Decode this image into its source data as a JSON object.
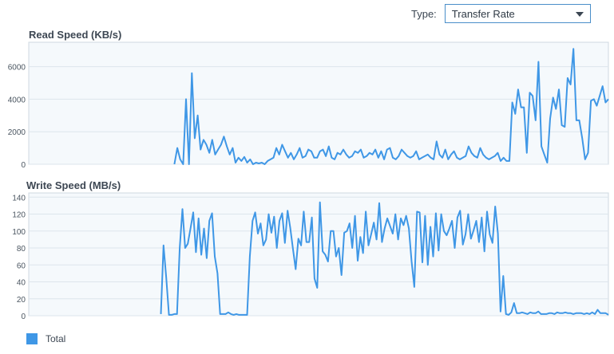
{
  "type_selector": {
    "label": "Type:",
    "value": "Transfer Rate"
  },
  "legend": {
    "label": "Total",
    "color": "#3f97e6"
  },
  "chart_data": [
    {
      "type": "line",
      "title": "Read Speed (KB/s)",
      "ylim": [
        0,
        7500
      ],
      "yticks": [
        0,
        2000,
        4000,
        6000
      ],
      "grid": true,
      "series": [
        {
          "name": "Total",
          "color": "#3f97e6",
          "values": [
            null,
            null,
            null,
            null,
            null,
            null,
            null,
            null,
            null,
            null,
            null,
            null,
            null,
            null,
            null,
            null,
            null,
            null,
            null,
            null,
            null,
            null,
            null,
            null,
            null,
            null,
            null,
            null,
            null,
            null,
            null,
            null,
            null,
            null,
            null,
            null,
            null,
            null,
            null,
            null,
            null,
            null,
            null,
            null,
            null,
            null,
            null,
            null,
            null,
            null,
            0,
            1000,
            300,
            0,
            4000,
            0,
            5600,
            1600,
            3000,
            900,
            1500,
            1200,
            700,
            1500,
            600,
            900,
            1200,
            1700,
            1100,
            600,
            1000,
            100,
            400,
            200,
            450,
            100,
            300,
            0,
            100,
            50,
            100,
            0,
            200,
            300,
            400,
            1000,
            600,
            1200,
            800,
            400,
            700,
            300,
            600,
            1000,
            400,
            500,
            900,
            800,
            400,
            400,
            800,
            900,
            500,
            1100,
            400,
            300,
            700,
            600,
            900,
            600,
            400,
            500,
            800,
            700,
            900,
            400,
            500,
            700,
            600,
            900,
            400,
            800,
            300,
            900,
            1000,
            400,
            300,
            500,
            900,
            700,
            500,
            400,
            500,
            800,
            300,
            400,
            500,
            600,
            400,
            300,
            1400,
            600,
            400,
            900,
            300,
            600,
            800,
            400,
            300,
            400,
            500,
            1100,
            700,
            500,
            400,
            1000,
            600,
            400,
            300,
            400,
            500,
            700,
            200,
            400,
            200,
            200,
            3800,
            3100,
            4600,
            3500,
            3500,
            700,
            4400,
            4200,
            2700,
            6300,
            1100,
            600,
            100,
            2800,
            4100,
            3400,
            4600,
            2400,
            2300,
            5300,
            4900,
            7100,
            2700,
            2700,
            1600,
            300,
            700,
            3900,
            4000,
            3600,
            4200,
            4800,
            3800,
            4000
          ]
        }
      ]
    },
    {
      "type": "line",
      "title": "Write Speed (MB/s)",
      "ylim": [
        0,
        145
      ],
      "yticks": [
        0,
        20,
        40,
        60,
        80,
        100,
        120,
        140
      ],
      "grid": true,
      "series": [
        {
          "name": "Total",
          "color": "#3f97e6",
          "values": [
            null,
            null,
            null,
            null,
            null,
            null,
            null,
            null,
            null,
            null,
            null,
            null,
            null,
            null,
            null,
            null,
            null,
            null,
            null,
            null,
            null,
            null,
            null,
            null,
            null,
            null,
            null,
            null,
            null,
            null,
            null,
            null,
            null,
            null,
            null,
            null,
            null,
            null,
            null,
            null,
            null,
            null,
            null,
            null,
            null,
            null,
            null,
            null,
            null,
            2,
            83,
            45,
            1,
            1,
            2,
            2,
            80,
            126,
            80,
            85,
            103,
            122,
            75,
            115,
            72,
            103,
            68,
            112,
            121,
            70,
            50,
            2,
            2,
            2,
            4,
            2,
            1,
            2,
            1,
            1,
            1,
            1,
            70,
            112,
            122,
            97,
            109,
            83,
            90,
            120,
            98,
            117,
            80,
            112,
            121,
            86,
            124,
            104,
            79,
            55,
            91,
            83,
            123,
            87,
            87,
            116,
            44,
            33,
            134,
            76,
            72,
            64,
            100,
            100,
            70,
            80,
            48,
            98,
            100,
            109,
            80,
            118,
            65,
            93,
            74,
            123,
            83,
            96,
            110,
            90,
            133,
            87,
            103,
            115,
            106,
            97,
            120,
            90,
            115,
            107,
            118,
            103,
            64,
            34,
            123,
            122,
            63,
            118,
            60,
            105,
            70,
            121,
            77,
            120,
            100,
            95,
            103,
            112,
            80,
            116,
            124,
            84,
            96,
            120,
            91,
            101,
            112,
            87,
            116,
            76,
            123,
            96,
            86,
            129,
            97,
            5,
            47,
            2,
            1,
            4,
            15,
            3,
            3,
            4,
            3,
            2,
            4,
            3,
            3,
            5,
            2,
            2,
            2,
            3,
            3,
            2,
            4,
            3,
            3,
            4,
            3,
            3,
            2,
            3,
            3,
            3,
            2,
            3,
            2,
            4,
            2,
            7,
            3,
            3,
            3,
            1
          ]
        }
      ]
    }
  ]
}
